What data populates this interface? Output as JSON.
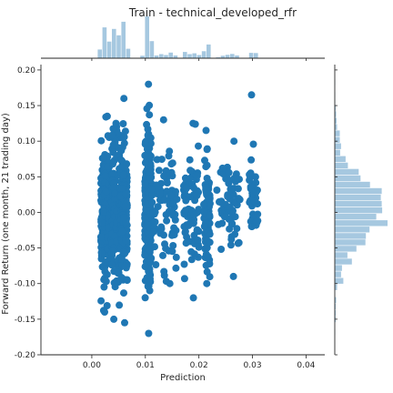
{
  "chart_data": {
    "type": "scatter",
    "title": "Train - technical_developed_rfr",
    "xlabel": "Prediction",
    "ylabel": "Forward Return (one month, 21 trading day)",
    "xlim": [
      -0.0095,
      0.0435
    ],
    "ylim": [
      -0.2,
      0.205
    ],
    "x_ticks": [
      "0.00",
      "0.01",
      "0.02",
      "0.03",
      "0.04"
    ],
    "y_ticks": [
      "-0.20",
      "-0.15",
      "-0.10",
      "-0.05",
      "0.00",
      "0.05",
      "0.10",
      "0.15",
      "0.20"
    ],
    "marker_color": "#1f77b4",
    "hist_color": "#a6c8e0",
    "grid": false,
    "marginal_histograms": true,
    "series": [
      {
        "clusters": [
          {
            "x": 0.0025,
            "x_spread": 0.0008,
            "y_mean": 0.0,
            "y_sd": 0.045,
            "y_min": -0.14,
            "y_max": 0.135,
            "n": 240
          },
          {
            "x": 0.0045,
            "x_spread": 0.0008,
            "y_mean": 0.0,
            "y_sd": 0.045,
            "y_min": -0.15,
            "y_max": 0.125,
            "n": 220
          },
          {
            "x": 0.006,
            "x_spread": 0.0006,
            "y_mean": 0.0,
            "y_sd": 0.045,
            "y_min": -0.155,
            "y_max": 0.16,
            "n": 220
          },
          {
            "x": 0.0105,
            "x_spread": 0.0006,
            "y_mean": 0.0,
            "y_sd": 0.05,
            "y_min": -0.17,
            "y_max": 0.18,
            "n": 260
          },
          {
            "x": 0.0135,
            "x_spread": 0.0025,
            "y_mean": 0.01,
            "y_sd": 0.04,
            "y_min": -0.1,
            "y_max": 0.13,
            "n": 90
          },
          {
            "x": 0.0185,
            "x_spread": 0.0015,
            "y_mean": 0.0,
            "y_sd": 0.04,
            "y_min": -0.12,
            "y_max": 0.125,
            "n": 80
          },
          {
            "x": 0.0215,
            "x_spread": 0.0006,
            "y_mean": 0.0,
            "y_sd": 0.04,
            "y_min": -0.1,
            "y_max": 0.115,
            "n": 90
          },
          {
            "x": 0.0255,
            "x_spread": 0.0022,
            "y_mean": 0.01,
            "y_sd": 0.035,
            "y_min": -0.09,
            "y_max": 0.1,
            "n": 60
          },
          {
            "x": 0.0302,
            "x_spread": 0.0008,
            "y_mean": 0.02,
            "y_sd": 0.035,
            "y_min": -0.02,
            "y_max": 0.165,
            "n": 45
          }
        ]
      }
    ]
  }
}
